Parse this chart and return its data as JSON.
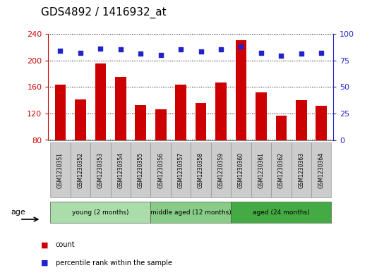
{
  "title": "GDS4892 / 1416932_at",
  "samples": [
    "GSM1230351",
    "GSM1230352",
    "GSM1230353",
    "GSM1230354",
    "GSM1230355",
    "GSM1230356",
    "GSM1230357",
    "GSM1230358",
    "GSM1230359",
    "GSM1230360",
    "GSM1230361",
    "GSM1230362",
    "GSM1230363",
    "GSM1230364"
  ],
  "counts": [
    163,
    141,
    195,
    175,
    133,
    126,
    163,
    136,
    167,
    230,
    152,
    117,
    140,
    131
  ],
  "percentiles": [
    84,
    82,
    86,
    85,
    81,
    80,
    85,
    83,
    85,
    88,
    82,
    79,
    81,
    82
  ],
  "ylim_left": [
    80,
    240
  ],
  "ylim_right": [
    0,
    100
  ],
  "yticks_left": [
    80,
    120,
    160,
    200,
    240
  ],
  "yticks_right": [
    0,
    25,
    50,
    75,
    100
  ],
  "bar_color": "#cc0000",
  "dot_color": "#2222cc",
  "groups": [
    {
      "label": "young (2 months)",
      "start": 0,
      "end": 5,
      "color": "#aaddaa"
    },
    {
      "label": "middle aged (12 months)",
      "start": 5,
      "end": 9,
      "color": "#88cc88"
    },
    {
      "label": "aged (24 months)",
      "start": 9,
      "end": 14,
      "color": "#44aa44"
    }
  ],
  "age_label": "age",
  "legend_count_label": "count",
  "legend_pct_label": "percentile rank within the sample",
  "tick_label_color_left": "#cc0000",
  "tick_label_color_right": "#2222cc",
  "title_fontsize": 11,
  "axis_fontsize": 8,
  "bar_width": 0.55,
  "sample_box_color": "#cccccc",
  "sample_box_edge": "#888888"
}
